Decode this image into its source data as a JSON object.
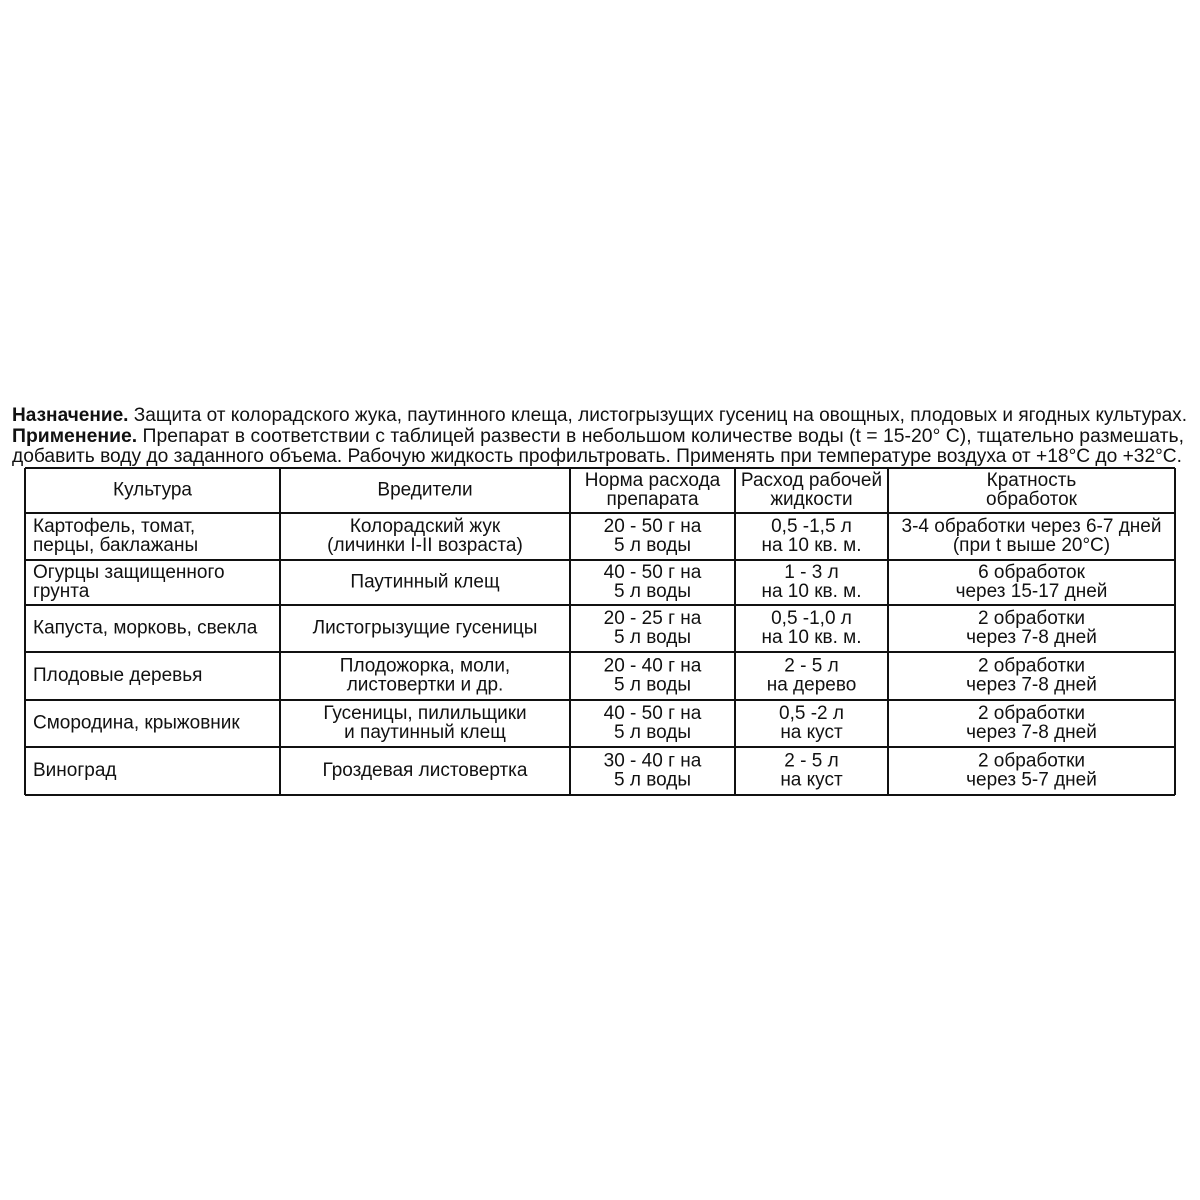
{
  "intro": {
    "purpose": {
      "label": "Назначение.",
      "text": "Защита от колорадского жука, паутинного клеща, листогрызущих гусениц на овощных, плодовых и ягодных культурах."
    },
    "application": {
      "label": "Применение.",
      "lines": [
        "Препарат в соответствии с таблицей развести в небольшом количестве воды (t = 15-20° C), тщательно размешать,",
        "добавить воду до заданного объема. Рабочую жидкость профильтровать. Применять при температуре воздуха от +18°C до +32°C."
      ]
    }
  },
  "table": {
    "header": [
      [
        "Культура"
      ],
      [
        "Вредители"
      ],
      [
        "Норма расхода",
        "препарата"
      ],
      [
        "Расход рабочей",
        "жидкости"
      ],
      [
        "Кратность",
        "обработок"
      ]
    ],
    "rows": [
      [
        [
          "Картофель, томат,",
          "перцы, баклажаны"
        ],
        [
          "Колорадский жук",
          "(личинки I-II возраста)"
        ],
        [
          "20 - 50 г на",
          "5 л воды"
        ],
        [
          "0,5 -1,5 л",
          "на 10 кв. м."
        ],
        [
          "3-4 обработки через 6-7 дней",
          "(при t выше 20°C)"
        ]
      ],
      [
        [
          "Огурцы защищенного",
          "грунта"
        ],
        [
          "Паутинный клещ"
        ],
        [
          "40 - 50 г на",
          "5 л воды"
        ],
        [
          "1 - 3 л",
          "на 10 кв. м."
        ],
        [
          "6 обработок",
          "через 15-17 дней"
        ]
      ],
      [
        [
          "Капуста, морковь, свекла"
        ],
        [
          "Листогрызущие гусеницы"
        ],
        [
          "20 - 25 г на",
          "5 л воды"
        ],
        [
          "0,5 -1,0 л",
          "на 10 кв. м."
        ],
        [
          "2 обработки",
          "через 7-8 дней"
        ]
      ],
      [
        [
          "Плодовые деревья"
        ],
        [
          "Плодожорка, моли,",
          "листовертки и др."
        ],
        [
          "20 - 40 г на",
          "5 л воды"
        ],
        [
          "2 - 5 л",
          "на дерево"
        ],
        [
          "2 обработки",
          "через 7-8 дней"
        ]
      ],
      [
        [
          "Смородина, крыжовник"
        ],
        [
          "Гусеницы, пилильщики",
          "и паутинный клещ"
        ],
        [
          "40 - 50 г на",
          "5 л воды"
        ],
        [
          "0,5 -2 л",
          "на куст"
        ],
        [
          "2 обработки",
          "через 7-8 дней"
        ]
      ],
      [
        [
          "Виноград"
        ],
        [
          "Гроздевая листовертка"
        ],
        [
          "30 - 40 г на",
          "5 л воды"
        ],
        [
          "2 - 5 л",
          "на куст"
        ],
        [
          "2 обработки",
          "через 5-7 дней"
        ]
      ]
    ]
  }
}
